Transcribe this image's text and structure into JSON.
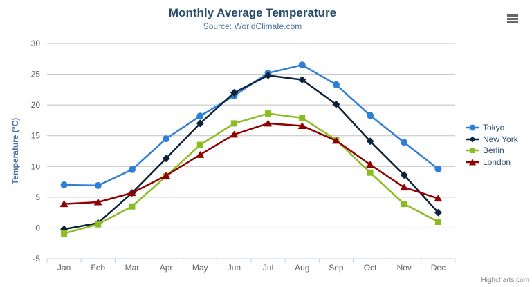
{
  "chart": {
    "credit": "Highcharts.com"
  },
  "chart_data": {
    "type": "line",
    "title": "Monthly Average Temperature",
    "subtitle": "Source: WorldClimate.com",
    "xlabel": "",
    "ylabel": "Temperature (°C)",
    "categories": [
      "Jan",
      "Feb",
      "Mar",
      "Apr",
      "May",
      "Jun",
      "Jul",
      "Aug",
      "Sep",
      "Oct",
      "Nov",
      "Dec"
    ],
    "series": [
      {
        "name": "Tokyo",
        "color": "#2f7ed8",
        "marker": "circle",
        "values": [
          7.0,
          6.9,
          9.5,
          14.5,
          18.2,
          21.5,
          25.2,
          26.5,
          23.3,
          18.3,
          13.9,
          9.6
        ]
      },
      {
        "name": "New York",
        "color": "#0d233a",
        "marker": "diamond",
        "values": [
          -0.2,
          0.8,
          5.7,
          11.3,
          17.0,
          22.0,
          24.8,
          24.1,
          20.1,
          14.1,
          8.6,
          2.5
        ]
      },
      {
        "name": "Berlin",
        "color": "#8bbc21",
        "marker": "square",
        "values": [
          -0.9,
          0.6,
          3.5,
          8.4,
          13.5,
          17.0,
          18.6,
          17.9,
          14.3,
          9.0,
          3.9,
          1.0
        ]
      },
      {
        "name": "London",
        "color": "#910000",
        "marker": "triangle",
        "values": [
          3.9,
          4.2,
          5.7,
          8.5,
          11.9,
          15.2,
          17.0,
          16.6,
          14.2,
          10.3,
          6.6,
          4.8
        ]
      }
    ],
    "ylim": [
      -5,
      30
    ],
    "y_ticks": [
      30,
      25,
      20,
      15,
      10,
      5,
      0,
      -5
    ],
    "grid": "horizontal-only",
    "legend_position": "right",
    "style": {
      "title_color": "#274b6d",
      "subtitle_color": "#4d759e",
      "axis_title_color": "#4572a7",
      "tick_label_color": "#606060",
      "grid_color": "#c0c0c0",
      "axis_line_color": "#c0d0e0",
      "legend_text_color": "#274b6d",
      "credit_color": "#8b8b8b",
      "menu_icon_color": "#666666"
    }
  }
}
